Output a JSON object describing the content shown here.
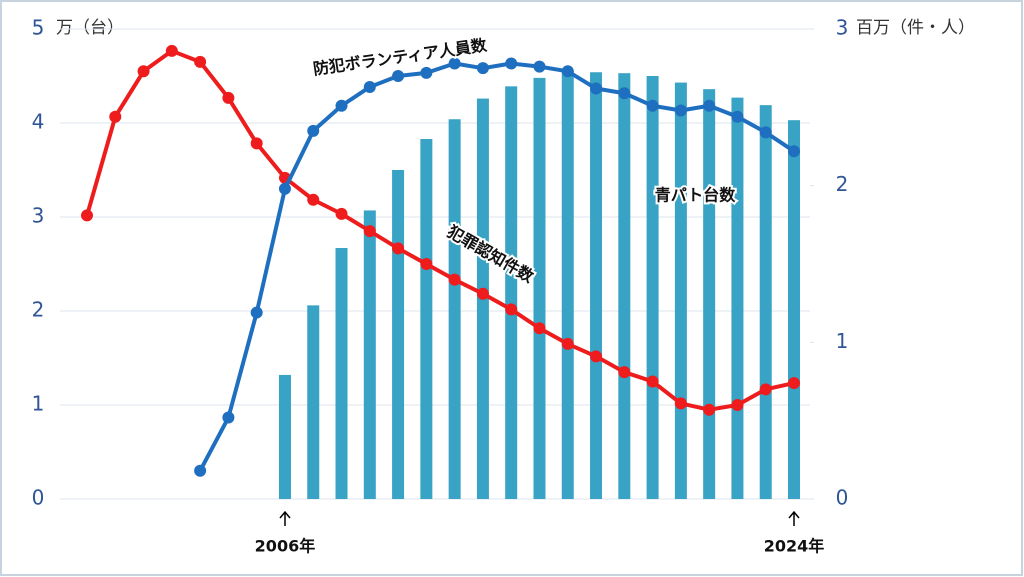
{
  "chart_data": {
    "type": "bar-line",
    "categories": [
      null,
      null,
      null,
      null,
      null,
      null,
      null,
      "2006年",
      null,
      null,
      null,
      null,
      null,
      null,
      null,
      null,
      null,
      null,
      null,
      null,
      null,
      null,
      null,
      null,
      null,
      "2024年"
    ],
    "ylabel": "万（台）",
    "y2label": "百万（件・人）",
    "ylim": [
      0,
      5
    ],
    "yticks": [
      0,
      1,
      2,
      3,
      4,
      5
    ],
    "y2lim": [
      0,
      3
    ],
    "y2ticks": [
      0,
      1,
      2,
      3
    ],
    "series": [
      {
        "name": "青パト台数",
        "type": "bar",
        "color": "#38a3c4",
        "axis": "y",
        "values": [
          null,
          null,
          null,
          null,
          null,
          null,
          null,
          1.32,
          2.06,
          2.67,
          3.07,
          3.5,
          3.83,
          4.04,
          4.26,
          4.39,
          4.48,
          4.56,
          4.54,
          4.53,
          4.5,
          4.43,
          4.36,
          4.27,
          4.19,
          4.03
        ]
      },
      {
        "name": "犯罪認知件数",
        "type": "line",
        "color": "#ee1c1c",
        "axis": "y2",
        "values": [
          1.81,
          2.44,
          2.73,
          2.86,
          2.79,
          2.56,
          2.27,
          2.05,
          1.91,
          1.82,
          1.71,
          1.6,
          1.5,
          1.4,
          1.31,
          1.21,
          1.09,
          0.99,
          0.91,
          0.81,
          0.75,
          0.61,
          0.57,
          0.6,
          0.7,
          0.74
        ]
      },
      {
        "name": "防犯ボランティア人員数",
        "type": "line",
        "color": "#1f6fc0",
        "axis": "y2",
        "values": [
          null,
          null,
          null,
          null,
          0.18,
          0.52,
          1.19,
          1.98,
          2.35,
          2.51,
          2.63,
          2.7,
          2.72,
          2.78,
          2.75,
          2.78,
          2.76,
          2.73,
          2.62,
          2.59,
          2.51,
          2.48,
          2.51,
          2.44,
          2.34,
          2.22
        ]
      }
    ]
  }
}
